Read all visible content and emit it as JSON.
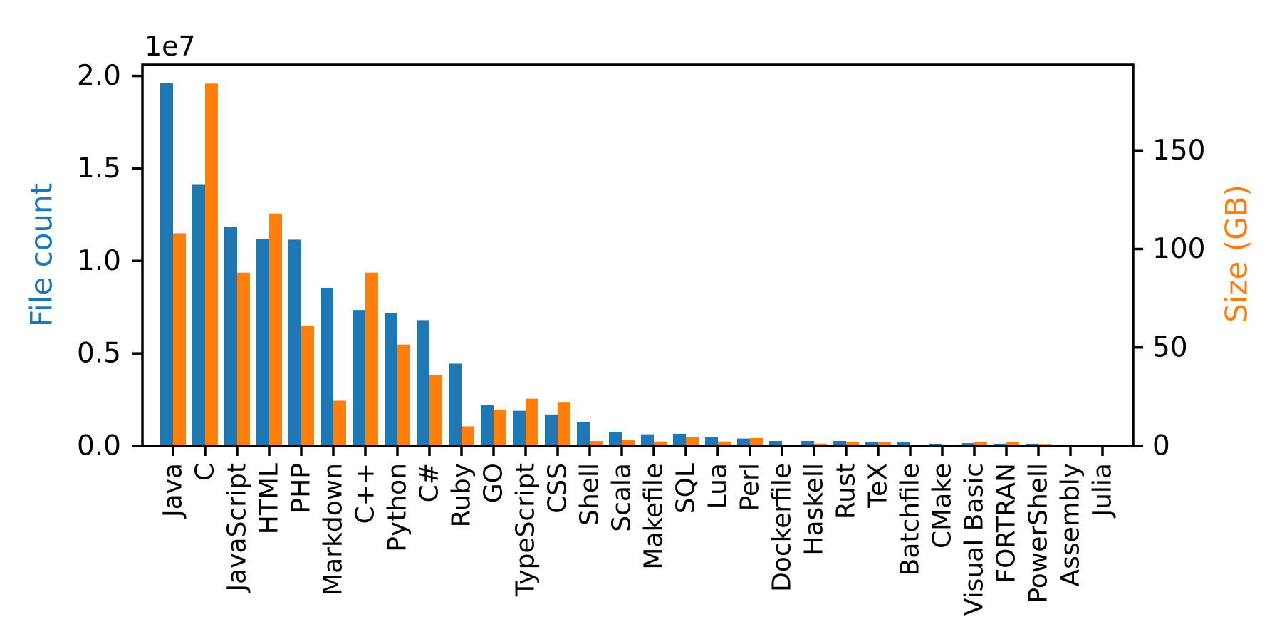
{
  "page": {
    "background": "#ffffff"
  },
  "chart_data": {
    "type": "bar",
    "title": "",
    "xlabel": "",
    "grid": false,
    "legend": "none",
    "axis_color": "#000000",
    "categories": [
      "Java",
      "C",
      "JavaScript",
      "HTML",
      "PHP",
      "Markdown",
      "C++",
      "Python",
      "C#",
      "Ruby",
      "GO",
      "TypeScript",
      "CSS",
      "Shell",
      "Scala",
      "Makefile",
      "SQL",
      "Lua",
      "Perl",
      "Dockerfile",
      "Haskell",
      "Rust",
      "TeX",
      "Batchfile",
      "CMake",
      "Visual Basic",
      "FORTRAN",
      "PowerShell",
      "Assembly",
      "Julia"
    ],
    "series": [
      {
        "name": "File count",
        "axis": "left",
        "color": "#1f77b4",
        "values": [
          19600000,
          14150000,
          11850000,
          11200000,
          11150000,
          8550000,
          7350000,
          7200000,
          6800000,
          4450000,
          2200000,
          1900000,
          1700000,
          1300000,
          740000,
          630000,
          660000,
          500000,
          400000,
          270000,
          270000,
          270000,
          200000,
          220000,
          120000,
          150000,
          120000,
          120000,
          80000,
          50000
        ]
      },
      {
        "name": "Size (GB)",
        "axis": "right",
        "color": "#ff7f0e",
        "values": [
          108,
          184,
          88,
          118,
          61,
          23,
          88,
          51.5,
          36,
          10,
          18.5,
          24,
          22,
          2.5,
          3,
          2.3,
          4.7,
          2.3,
          4,
          0.4,
          1.2,
          2.2,
          1.8,
          0.3,
          0.2,
          2.2,
          1.8,
          1.0,
          0.7,
          0.3
        ]
      }
    ],
    "left_axis": {
      "label": "File count",
      "color": "#1f77b4",
      "offset_text": "1e7",
      "tick_labels": [
        "0.0",
        "0.5",
        "1.0",
        "1.5",
        "2.0"
      ],
      "tick_values": [
        0,
        5000000,
        10000000,
        15000000,
        20000000
      ],
      "ylim": [
        0,
        20600000
      ]
    },
    "right_axis": {
      "label": "Size (GB)",
      "color": "#ff7f0e",
      "tick_labels": [
        "0",
        "50",
        "100",
        "150"
      ],
      "tick_values": [
        0,
        50,
        100,
        150
      ],
      "ylim": [
        0,
        193.5
      ]
    }
  }
}
